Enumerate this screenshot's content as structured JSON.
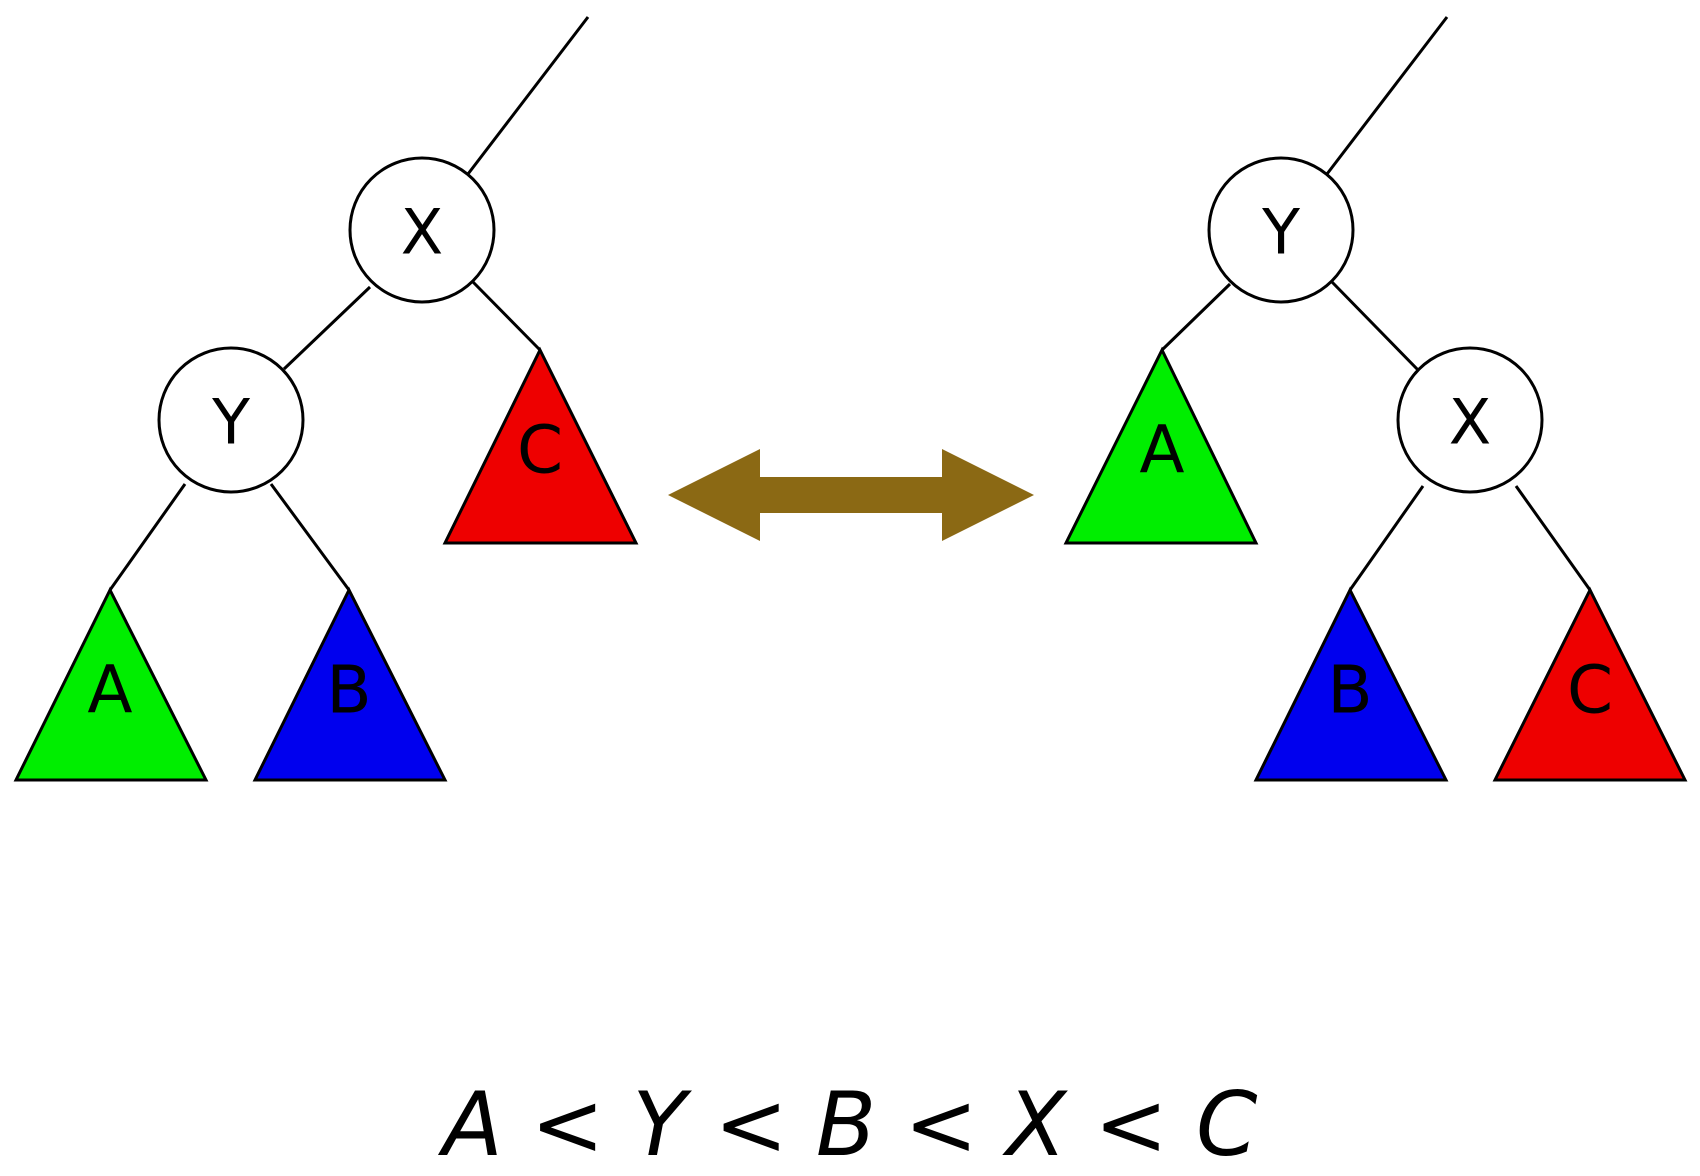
{
  "left_tree": {
    "root": "X",
    "child": "Y",
    "subtrees": [
      "A",
      "B",
      "C"
    ]
  },
  "right_tree": {
    "root": "Y",
    "child": "X",
    "subtrees": [
      "A",
      "B",
      "C"
    ]
  },
  "ordering": "A < Y < B < X < C",
  "colors": {
    "A": "#00ee00",
    "B": "#0000ee",
    "C": "#ee0000",
    "arrow": "#8b6914",
    "node_fill": "#ffffff",
    "stroke": "#000000"
  },
  "icons": {
    "swap": "double-headed-arrow"
  }
}
